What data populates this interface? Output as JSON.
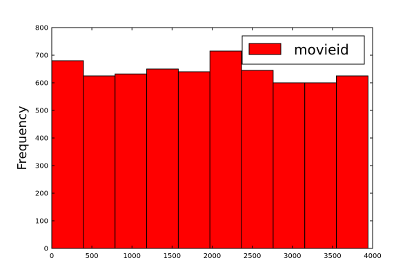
{
  "chart_data": {
    "type": "bar",
    "subtype": "histogram",
    "title": "",
    "xlabel": "",
    "ylabel": "Frequency",
    "xlim": [
      0,
      4000
    ],
    "ylim": [
      0,
      800
    ],
    "x_ticks": [
      0,
      500,
      1000,
      1500,
      2000,
      2500,
      3000,
      3500,
      4000
    ],
    "y_ticks": [
      0,
      100,
      200,
      300,
      400,
      500,
      600,
      700,
      800
    ],
    "grid": false,
    "legend_position": "top-right",
    "bin_edges": [
      1,
      395.2,
      789.4,
      1183.6,
      1577.8,
      1972,
      2366.2,
      2760.4,
      3154.6,
      3548.8,
      3943
    ],
    "series": [
      {
        "name": "movieid",
        "color": "#ff0000",
        "values": [
          680,
          625,
          632,
          650,
          640,
          715,
          645,
          600,
          600,
          625
        ]
      }
    ]
  }
}
